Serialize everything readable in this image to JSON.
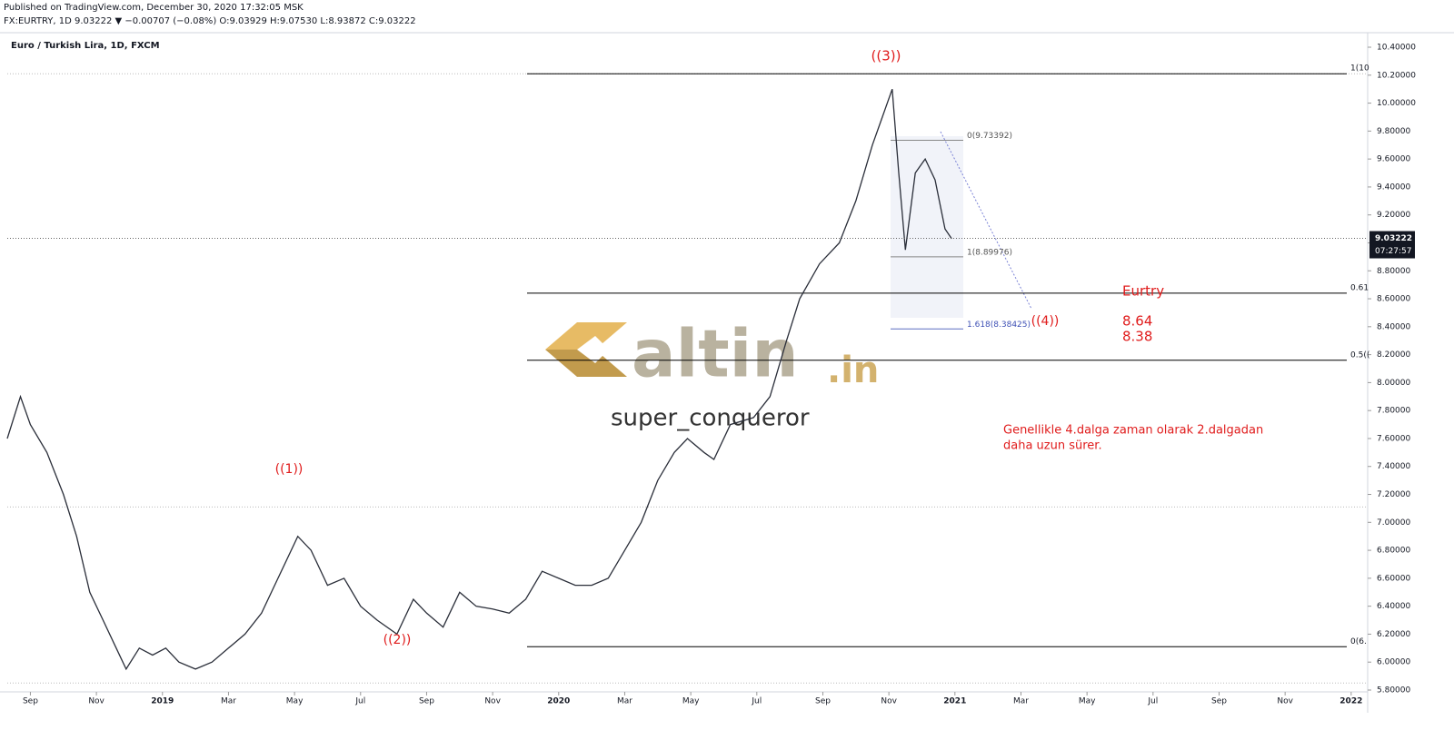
{
  "header": {
    "published": "Published on TradingView.com, December 30, 2020 17:32:05 MSK",
    "quote": "FX:EURTRY, 1D 9.03222 ▼ −0.00707 (−0.08%) O:9.03929 H:9.07530 L:8.93872 C:9.03222"
  },
  "chart_data": {
    "type": "line",
    "title": "Euro / Turkish Lira, 1D, FXCM",
    "color": "#2a2e39",
    "x": [
      -0.7,
      -0.3,
      0,
      0.5,
      1,
      1.4,
      1.8,
      2.2,
      2.6,
      2.9,
      3.3,
      3.7,
      4.1,
      4.5,
      5,
      5.5,
      6,
      6.5,
      7,
      7.5,
      8.1,
      8.5,
      9,
      9.5,
      10,
      10.5,
      11.1,
      11.6,
      12,
      12.5,
      13,
      13.5,
      14,
      14.5,
      15,
      15.5,
      16,
      16.5,
      17,
      17.5,
      18,
      18.5,
      19,
      19.5,
      19.9,
      20.4,
      20.7,
      21.2,
      21.9,
      22.4,
      22.9,
      23.3,
      23.9,
      24.5,
      25,
      25.5,
      25.8,
      26.1,
      26.3,
      26.5,
      26.8,
      27.1,
      27.4,
      27.7,
      27.9
    ],
    "values": [
      7.6,
      7.9,
      7.7,
      7.5,
      7.2,
      6.9,
      6.5,
      6.3,
      6.1,
      5.95,
      6.1,
      6.05,
      6.1,
      6.0,
      5.95,
      6.0,
      6.1,
      6.2,
      6.35,
      6.6,
      6.9,
      6.8,
      6.55,
      6.6,
      6.4,
      6.3,
      6.2,
      6.45,
      6.35,
      6.25,
      6.5,
      6.4,
      6.38,
      6.35,
      6.45,
      6.65,
      6.6,
      6.55,
      6.55,
      6.6,
      6.8,
      7.0,
      7.3,
      7.5,
      7.6,
      7.5,
      7.45,
      7.7,
      7.75,
      7.9,
      8.3,
      8.6,
      8.85,
      9.0,
      9.3,
      9.7,
      9.9,
      10.1,
      9.5,
      8.95,
      9.5,
      9.6,
      9.45,
      9.1,
      9.03
    ],
    "xlim": [
      -0.7,
      40.5
    ],
    "ylim": [
      5.787,
      10.478
    ],
    "xticks": [
      {
        "value": 0,
        "label": "Sep"
      },
      {
        "value": 2,
        "label": "Nov"
      },
      {
        "value": 4,
        "label": "2019"
      },
      {
        "value": 6,
        "label": "Mar"
      },
      {
        "value": 8,
        "label": "May"
      },
      {
        "value": 10,
        "label": "Jul"
      },
      {
        "value": 12,
        "label": "Sep"
      },
      {
        "value": 14,
        "label": "Nov"
      },
      {
        "value": 16,
        "label": "2020"
      },
      {
        "value": 18,
        "label": "Mar"
      },
      {
        "value": 20,
        "label": "May"
      },
      {
        "value": 22,
        "label": "Jul"
      },
      {
        "value": 24,
        "label": "Sep"
      },
      {
        "value": 26,
        "label": "Nov"
      },
      {
        "value": 28,
        "label": "2021"
      },
      {
        "value": 30,
        "label": "Mar"
      },
      {
        "value": 32,
        "label": "May"
      },
      {
        "value": 34,
        "label": "Jul"
      },
      {
        "value": 36,
        "label": "Sep"
      },
      {
        "value": 38,
        "label": "Nov"
      },
      {
        "value": 40,
        "label": "2022"
      }
    ],
    "yticks": [
      {
        "value": 5.8,
        "label": "5.80000"
      },
      {
        "value": 6,
        "label": "6.00000"
      },
      {
        "value": 6.2,
        "label": "6.20000"
      },
      {
        "value": 6.4,
        "label": "6.40000"
      },
      {
        "value": 6.6,
        "label": "6.60000"
      },
      {
        "value": 6.8,
        "label": "6.80000"
      },
      {
        "value": 7,
        "label": "7.00000"
      },
      {
        "value": 7.2,
        "label": "7.20000"
      },
      {
        "value": 7.4,
        "label": "7.40000"
      },
      {
        "value": 7.6,
        "label": "7.60000"
      },
      {
        "value": 7.8,
        "label": "7.80000"
      },
      {
        "value": 8,
        "label": "8.00000"
      },
      {
        "value": 8.2,
        "label": "8.20000"
      },
      {
        "value": 8.4,
        "label": "8.40000"
      },
      {
        "value": 8.6,
        "label": "8.60000"
      },
      {
        "value": 8.8,
        "label": "8.80000"
      },
      {
        "value": 9,
        "label": "9.00000"
      },
      {
        "value": 9.2,
        "label": "9.20000"
      },
      {
        "value": 9.4,
        "label": "9.40000"
      },
      {
        "value": 9.6,
        "label": "9.60000"
      },
      {
        "value": 9.8,
        "label": "9.80000"
      },
      {
        "value": 10,
        "label": "10.00000"
      },
      {
        "value": 10.2,
        "label": "10.20000"
      },
      {
        "value": 10.4,
        "label": "10.40000"
      }
    ],
    "last_price": {
      "value": 9.03222,
      "label": "9.03222",
      "countdown": "07:27:57"
    },
    "hlines": [
      {
        "value": 10.21,
        "label": "1(10"
      },
      {
        "value": 8.64,
        "label": "0.61"
      },
      {
        "value": 8.16,
        "label": "0.5(("
      },
      {
        "value": 6.11,
        "label": "0(6."
      }
    ],
    "dotted_levels": [
      10.21,
      7.11,
      5.85
    ],
    "fib": [
      {
        "value": 9.73392,
        "label": "0(9.73392)"
      },
      {
        "value": 8.89976,
        "label": "1(8.89976)"
      },
      {
        "value": 8.38425,
        "label": "1.618(8.38425)"
      }
    ],
    "annotations": [
      "((3))",
      "((1))",
      "((2))",
      "((4))",
      "Eurtry",
      "8.64",
      "8.38",
      "Genellikle 4.dalga zaman olarak 2.dalgadan",
      "daha uzun sürer."
    ],
    "watermark": {
      "name": "altin",
      "suffix": ".in",
      "author": "super_conqueror"
    }
  }
}
